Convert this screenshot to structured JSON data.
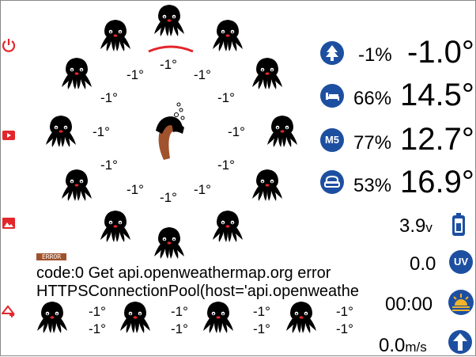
{
  "colors": {
    "accent_red": "#e3262b",
    "icon_blue": "#1d4fa1",
    "battery_blue": "#1d4fa1"
  },
  "sidebar": {
    "icons": [
      "power-icon",
      "play-icon",
      "image-icon",
      "add-location-icon"
    ]
  },
  "ring": {
    "center_icon": "ice-bucket-challenge-icon",
    "labels": [
      "-1°",
      "-1°",
      "-1°",
      "-1°",
      "-1°",
      "-1°",
      "-1°",
      "-1°",
      "-1°",
      "-1°",
      "-1°",
      "-1°",
      "-1°",
      "-1°"
    ]
  },
  "bottom_row": {
    "labels": [
      "-1°",
      "-1°",
      "-1°",
      "-1°",
      "-1°",
      "-1°",
      "-1°",
      "-1°",
      "-1°",
      "-1°"
    ]
  },
  "error": {
    "badge": "ERROR",
    "line1": "code:0 Get api.openweathermap.org error",
    "line2": "HTTPSConnectionPool(host='api.openweathe"
  },
  "sensors": [
    {
      "icon": "tree-icon",
      "humidity": "-1%",
      "temp": "-1.0°"
    },
    {
      "icon": "bed-icon",
      "humidity": "66%",
      "temp": "14.5°"
    },
    {
      "icon": "m5-icon",
      "humidity": "77%",
      "temp": "12.7°"
    },
    {
      "icon": "sofa-icon",
      "humidity": "53%",
      "temp": "16.9°"
    }
  ],
  "status": {
    "battery": "3.9",
    "battery_unit": "v",
    "uv": "0.0",
    "uv_badge": "UV",
    "sunrise": "00:00",
    "wind": "0.0",
    "wind_unit": "m/s"
  }
}
